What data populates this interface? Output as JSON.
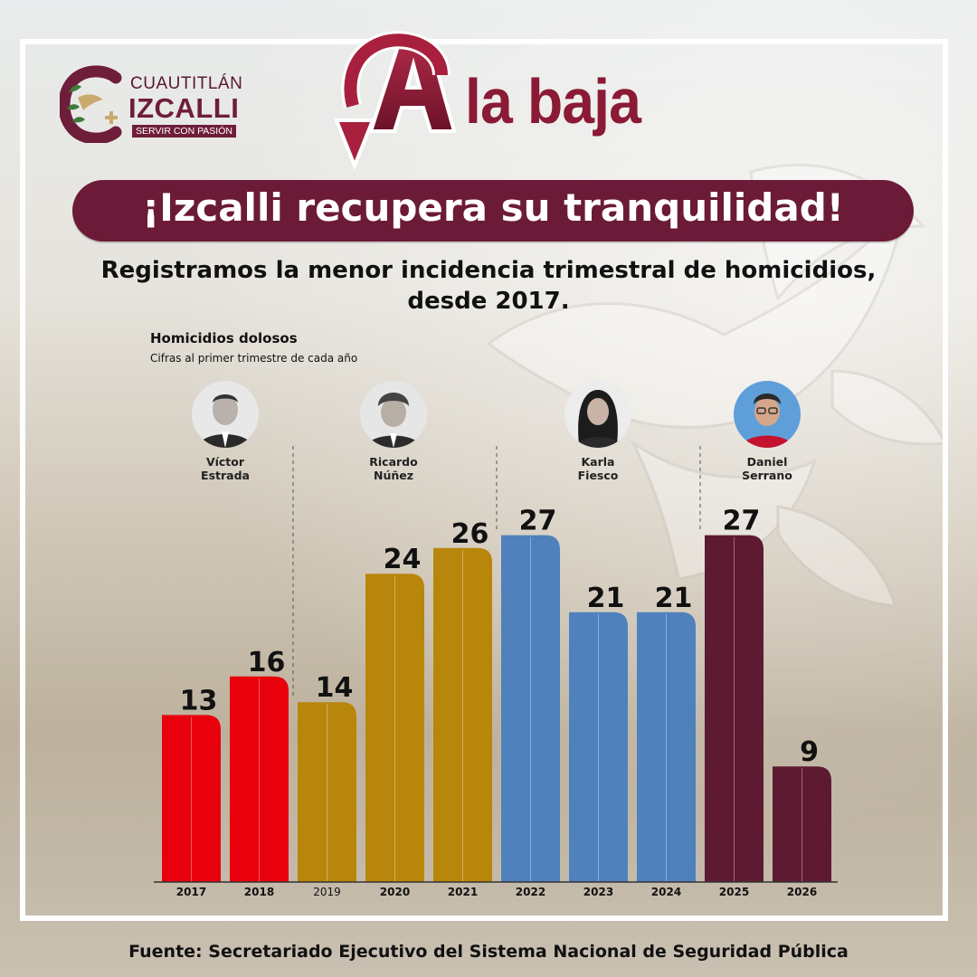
{
  "logo": {
    "line1": "CUAUTITLÁN",
    "line2": "IZCALLI",
    "tagline": "SERVIR CON PASIÓN"
  },
  "headline": {
    "big_letter": "A",
    "rest": "la baja"
  },
  "banner": "¡Izcalli recupera su tranquilidad!",
  "subtitle_line1": "Registramos la menor incidencia trimestral de homicidios,",
  "subtitle_line2": "desde 2017.",
  "source": "Fuente: Secretariado Ejecutivo del Sistema Nacional de Seguridad Pública",
  "people": [
    {
      "first": "Víctor",
      "last": "Estrada",
      "icon": "portrait-photo"
    },
    {
      "first": "Ricardo",
      "last": "Núñez",
      "icon": "portrait-photo"
    },
    {
      "first": "Karla",
      "last": "Fiesco",
      "icon": "portrait-photo"
    },
    {
      "first": "Daniel",
      "last": "Serrano",
      "icon": "portrait-photo"
    }
  ],
  "colors": {
    "brand": "#6b1b37",
    "red": "#e8000c",
    "gold": "#b8860b",
    "blue": "#4f81bd",
    "wine": "#5e1a30"
  },
  "chart_data": {
    "type": "bar",
    "title": "Homicidios dolosos",
    "subtitle": "Cifras al primer trimestre de cada año",
    "categories": [
      "2017",
      "2018",
      "2019",
      "2020",
      "2021",
      "2022",
      "2023",
      "2024",
      "2025",
      "2026"
    ],
    "values": [
      13,
      16,
      14,
      24,
      26,
      27,
      21,
      21,
      27,
      9
    ],
    "bar_colors": [
      "#e8000c",
      "#e8000c",
      "#b8860b",
      "#b8860b",
      "#b8860b",
      "#4f81bd",
      "#4f81bd",
      "#4f81bd",
      "#5e1a30",
      "#5e1a30"
    ],
    "ylim": [
      0,
      30
    ],
    "grid": false,
    "data_labels": true
  }
}
